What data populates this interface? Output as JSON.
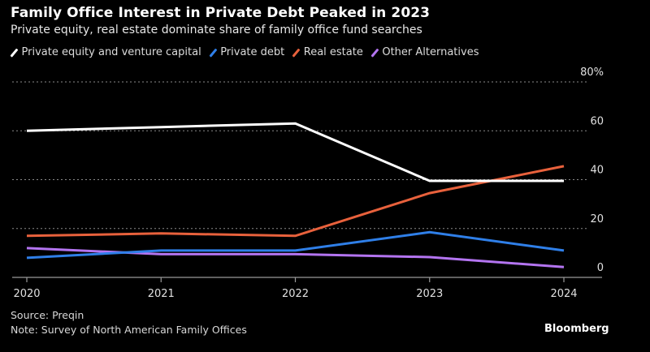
{
  "chart_data": {
    "type": "line",
    "title": "Family Office Interest in Private Debt Peaked in 2023",
    "subtitle": "Private equity, real estate dominate share of family office fund searches",
    "xlabel": "",
    "ylabel": "",
    "x": [
      "2020",
      "2021",
      "2022",
      "2023",
      "2024"
    ],
    "ylim": [
      0,
      80
    ],
    "yticks": [
      0,
      20,
      40,
      60,
      80
    ],
    "ytick_labels": [
      "0",
      "20",
      "40",
      "60",
      "80%"
    ],
    "grid": true,
    "legend_position": "top-left",
    "series": [
      {
        "name": "Private equity and venture capital",
        "color": "#ffffff",
        "values": [
          60,
          61.5,
          63,
          39.5,
          39.5
        ]
      },
      {
        "name": "Private debt",
        "color": "#2f7fe8",
        "values": [
          8,
          11,
          11,
          18.5,
          11
        ]
      },
      {
        "name": "Real estate",
        "color": "#e8613c",
        "values": [
          17,
          18,
          17,
          34.5,
          45.5
        ]
      },
      {
        "name": "Other Alternatives",
        "color": "#b374f0",
        "values": [
          12,
          9.5,
          9.5,
          8.3,
          4.2
        ]
      }
    ]
  },
  "footer": {
    "source": "Source: Preqin",
    "note": "Note: Survey of North American Family Offices",
    "brand": "Bloomberg"
  }
}
